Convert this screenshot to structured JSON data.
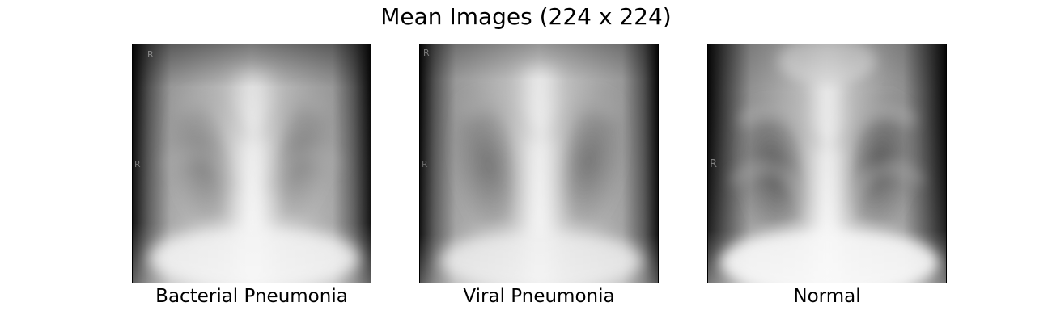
{
  "figure": {
    "title": "Mean Images (224 x 224)"
  },
  "panels": [
    {
      "caption": "Bacterial Pneumonia",
      "marker_text": "R",
      "marker_text_2": "R"
    },
    {
      "caption": "Viral Pneumonia",
      "marker_text": "R",
      "marker_text_2": "R"
    },
    {
      "caption": "Normal",
      "marker_text": "R",
      "marker_text_2": ""
    }
  ],
  "colors": {
    "background": "#ffffff",
    "frame": "#000000"
  }
}
